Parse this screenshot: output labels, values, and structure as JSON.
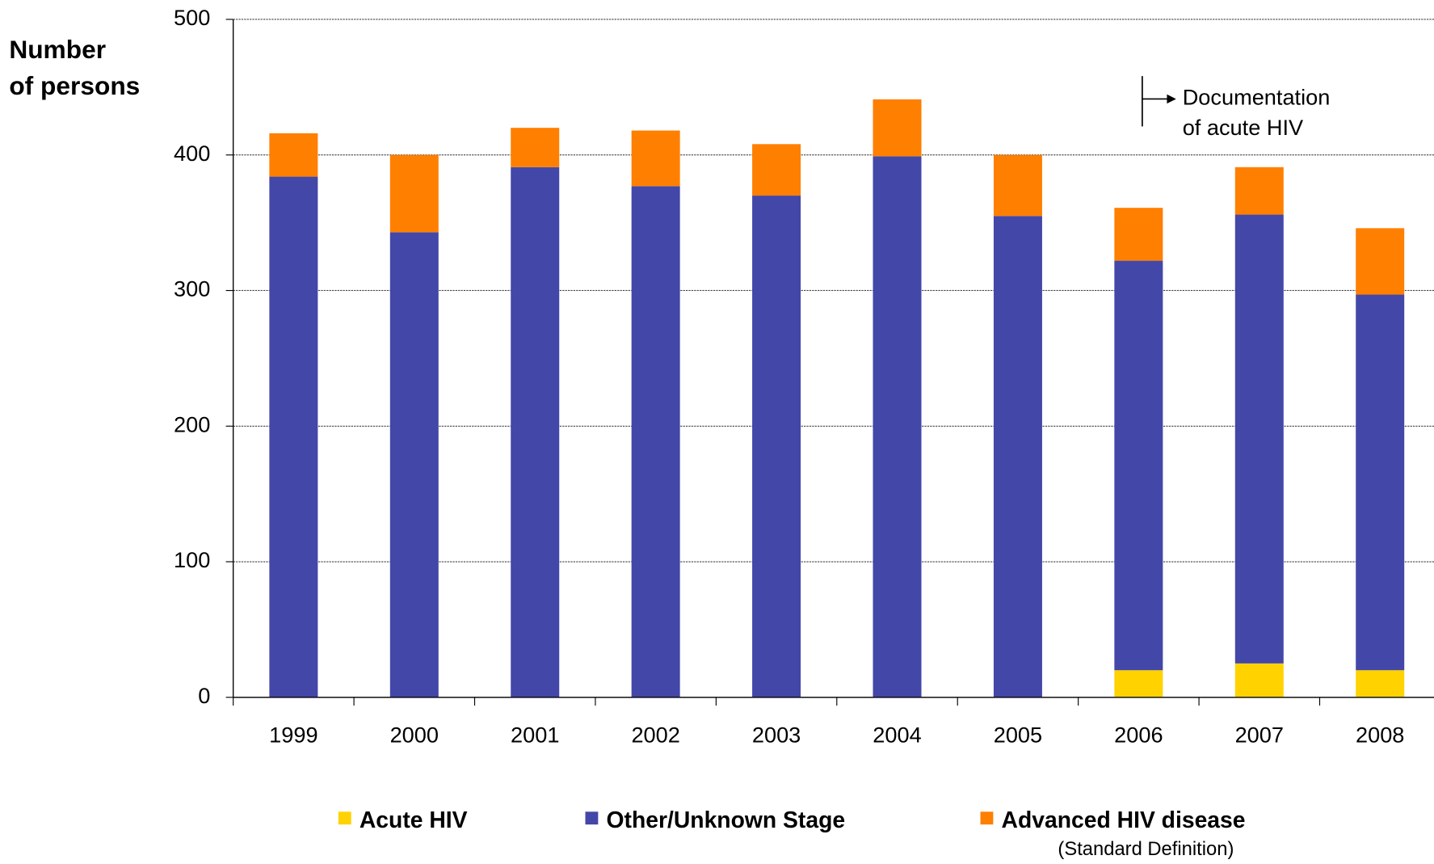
{
  "chart_data": {
    "type": "stacked_bar",
    "y_label_lines": [
      "Number",
      "of persons"
    ],
    "annotation_lines": [
      "Documentation",
      "of acute HIV"
    ],
    "categories": [
      "1999",
      "2000",
      "2001",
      "2002",
      "2003",
      "2004",
      "2005",
      "2006",
      "2007",
      "2008"
    ],
    "series": [
      {
        "name": "Acute HIV",
        "color": "#ffd200",
        "values": [
          0,
          0,
          0,
          0,
          0,
          0,
          0,
          20,
          25,
          20
        ]
      },
      {
        "name": "Other/Unknown Stage",
        "color": "#4347a8",
        "values": [
          384,
          343,
          391,
          377,
          370,
          399,
          355,
          302,
          331,
          277
        ]
      },
      {
        "name": "Advanced HIV disease",
        "color": "#ff7f00",
        "values": [
          32,
          57,
          29,
          41,
          38,
          42,
          45,
          39,
          35,
          49
        ]
      }
    ],
    "legend_note": "(Standard Definition)",
    "ylim": [
      0,
      500
    ],
    "yticks": [
      0,
      100,
      200,
      300,
      400,
      500
    ],
    "grid": true
  }
}
